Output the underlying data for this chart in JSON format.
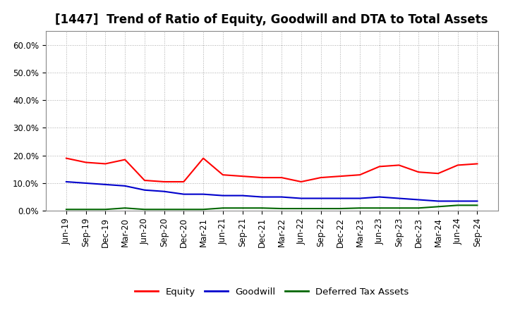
{
  "title": "[1447]  Trend of Ratio of Equity, Goodwill and DTA to Total Assets",
  "x_labels": [
    "Jun-19",
    "Sep-19",
    "Dec-19",
    "Mar-20",
    "Jun-20",
    "Sep-20",
    "Dec-20",
    "Mar-21",
    "Jun-21",
    "Sep-21",
    "Dec-21",
    "Mar-22",
    "Jun-22",
    "Sep-22",
    "Dec-22",
    "Mar-23",
    "Jun-23",
    "Sep-23",
    "Dec-23",
    "Mar-24",
    "Jun-24",
    "Sep-24"
  ],
  "equity": [
    19.0,
    17.5,
    17.0,
    18.5,
    11.0,
    10.5,
    10.5,
    19.0,
    13.0,
    12.5,
    12.0,
    12.0,
    10.5,
    12.0,
    12.5,
    13.0,
    16.0,
    16.5,
    14.0,
    13.5,
    16.5,
    17.0
  ],
  "goodwill": [
    10.5,
    10.0,
    9.5,
    9.0,
    7.5,
    7.0,
    6.0,
    6.0,
    5.5,
    5.5,
    5.0,
    5.0,
    4.5,
    4.5,
    4.5,
    4.5,
    5.0,
    4.5,
    4.0,
    3.5,
    3.5,
    3.5
  ],
  "dta": [
    0.5,
    0.5,
    0.5,
    1.0,
    0.5,
    0.5,
    0.5,
    0.5,
    1.0,
    1.0,
    1.0,
    0.8,
    0.8,
    0.8,
    0.8,
    1.0,
    1.0,
    1.0,
    1.0,
    1.5,
    2.0,
    2.0
  ],
  "equity_color": "#ff0000",
  "goodwill_color": "#0000cc",
  "dta_color": "#006600",
  "ylim": [
    0,
    65
  ],
  "yticks": [
    0,
    10,
    20,
    30,
    40,
    50,
    60
  ],
  "legend_labels": [
    "Equity",
    "Goodwill",
    "Deferred Tax Assets"
  ],
  "background_color": "#ffffff",
  "grid_color": "#aaaaaa",
  "title_fontsize": 12,
  "axis_fontsize": 8.5,
  "legend_fontsize": 9.5
}
